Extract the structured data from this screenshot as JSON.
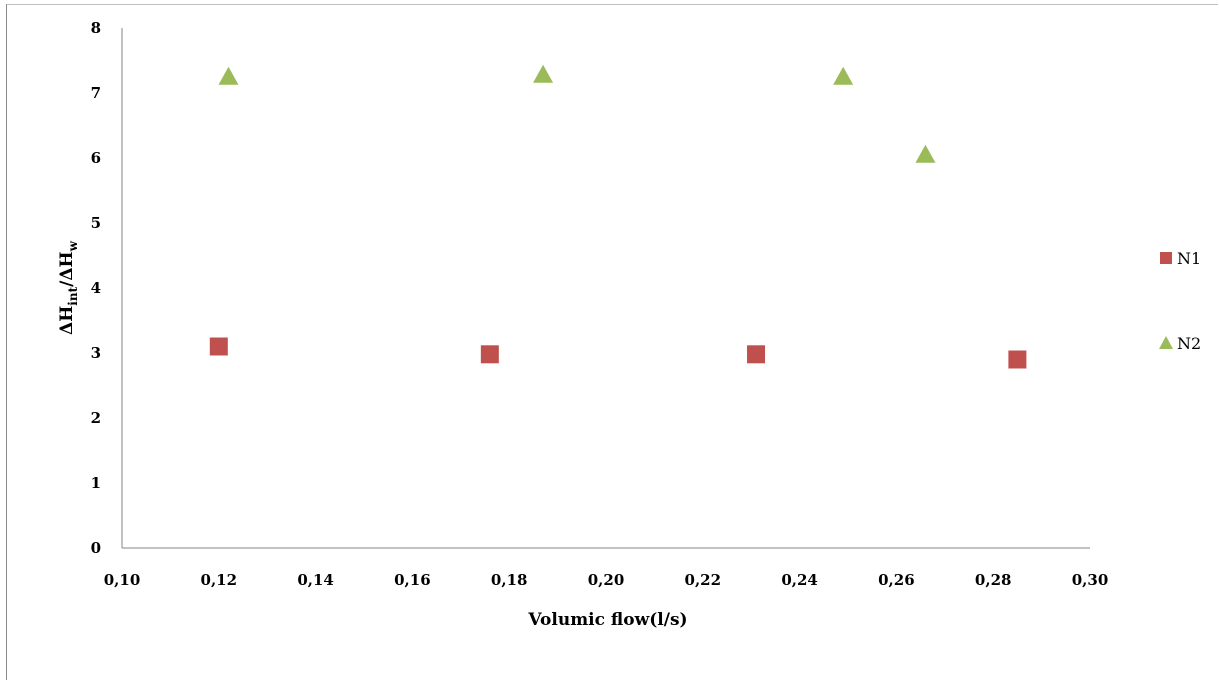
{
  "chart_data": {
    "type": "scatter",
    "title": "",
    "xlabel": "Volumic flow(l/s)",
    "ylabel": "ΔHint/ΔHw",
    "ylabel_parts": {
      "main1": "ΔH",
      "sub1": "int",
      "main2": "/ΔH",
      "sub2": "w"
    },
    "xlim": [
      0.1,
      0.3
    ],
    "ylim": [
      0,
      8
    ],
    "x_ticks": [
      "0,10",
      "0,12",
      "0,14",
      "0,16",
      "0,18",
      "0,20",
      "0,22",
      "0,24",
      "0,26",
      "0,28",
      "0,30"
    ],
    "y_ticks": [
      "0",
      "1",
      "2",
      "3",
      "4",
      "5",
      "6",
      "7",
      "8"
    ],
    "grid": false,
    "legend_position": "right",
    "series": [
      {
        "name": "N1",
        "marker": "square",
        "color": "#c0504d",
        "points": [
          [
            0.12,
            3.1
          ],
          [
            0.176,
            2.98
          ],
          [
            0.231,
            2.98
          ],
          [
            0.285,
            2.9
          ]
        ]
      },
      {
        "name": "N2",
        "marker": "triangle",
        "color": "#9bbb59",
        "points": [
          [
            0.122,
            7.25
          ],
          [
            0.187,
            7.28
          ],
          [
            0.249,
            7.25
          ],
          [
            0.266,
            6.05
          ]
        ]
      }
    ]
  }
}
